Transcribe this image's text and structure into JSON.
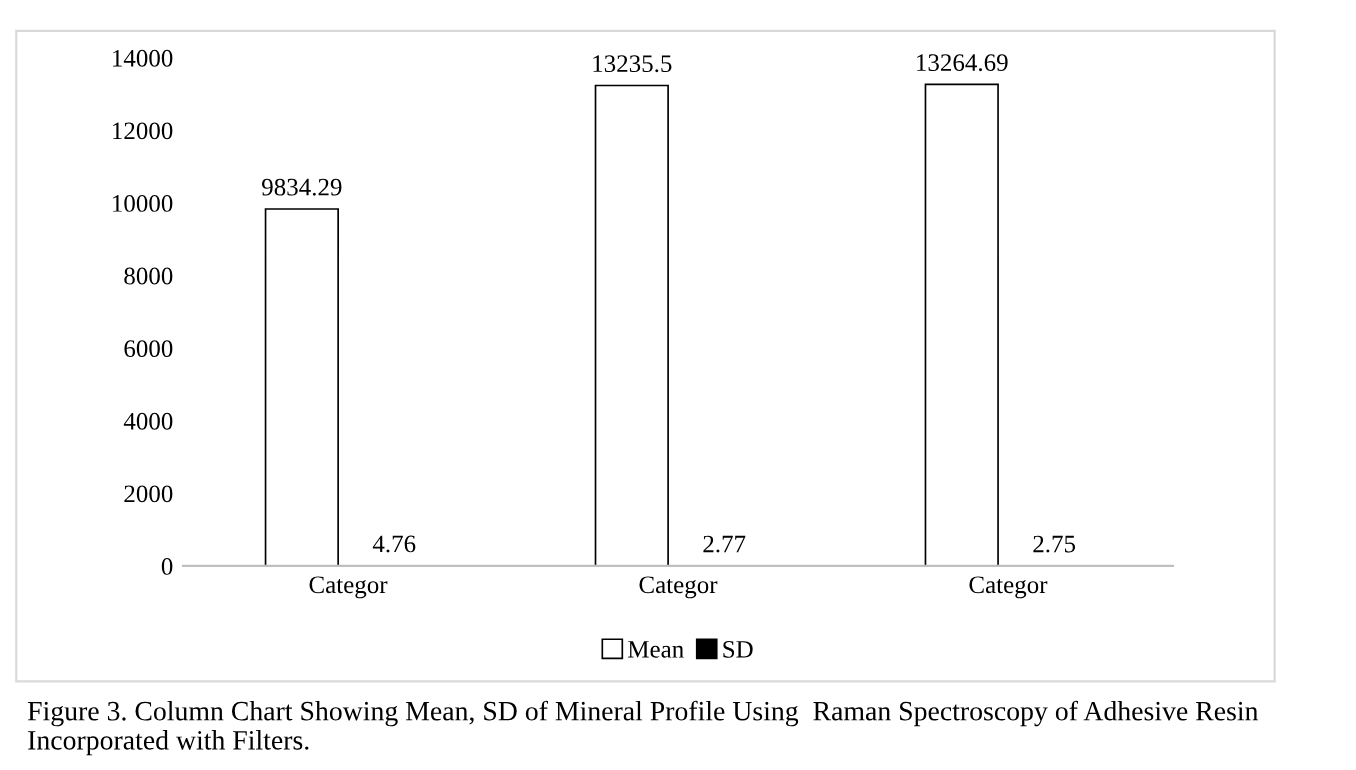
{
  "chart_data": {
    "type": "bar",
    "categories": [
      "Categor",
      "Categor",
      "Categor"
    ],
    "series": [
      {
        "name": "Mean",
        "color": "#ffffff",
        "values": [
          9834.29,
          13235.5,
          13264.69
        ]
      },
      {
        "name": "SD",
        "color": "#000000",
        "values": [
          4.76,
          2.77,
          2.75
        ]
      }
    ],
    "ylim": [
      0,
      14000
    ],
    "yticks": [
      0,
      2000,
      4000,
      6000,
      8000,
      10000,
      12000,
      14000
    ],
    "grid": false,
    "legend": "bottom",
    "data_labels": true,
    "annotations": [
      "Figure 3. Column Chart Showing Mean, SD of Mineral Profile Using  Raman Spectroscopy of Adhesive Resin Incorporated with Filters."
    ]
  }
}
